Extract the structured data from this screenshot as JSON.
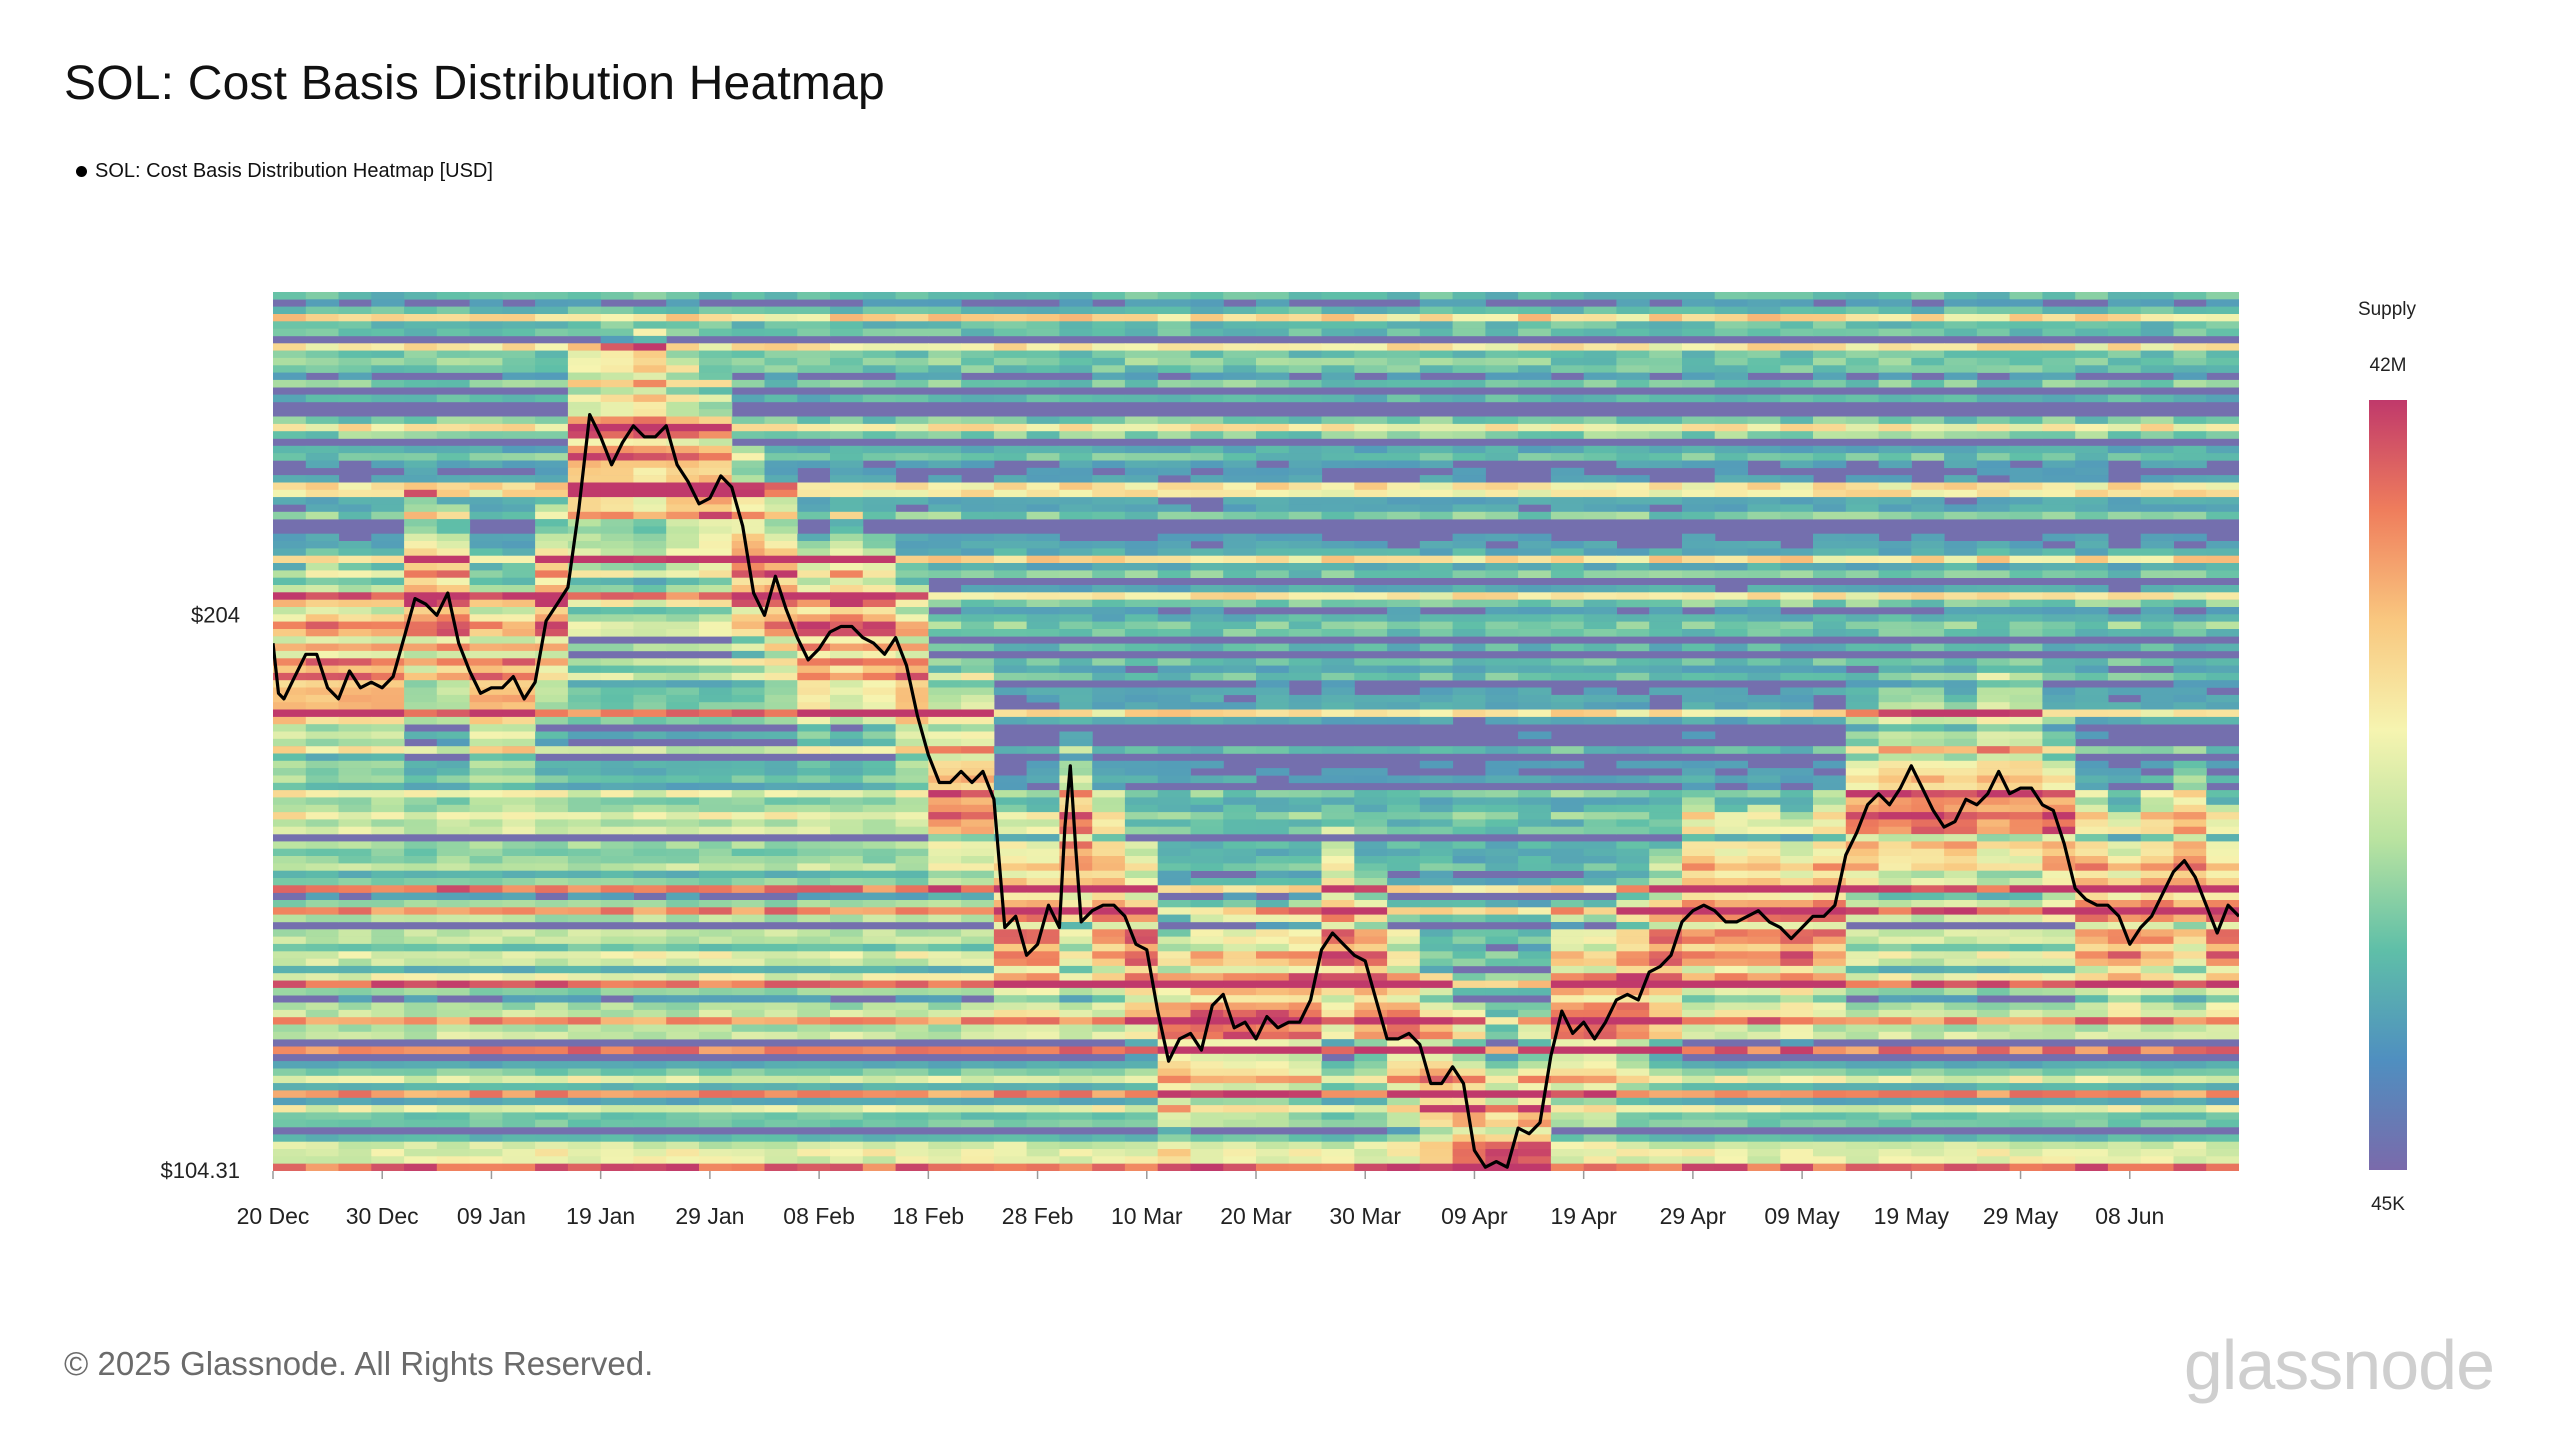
{
  "page": {
    "title": "SOL: Cost Basis Distribution Heatmap",
    "legend_label": "SOL: Cost Basis Distribution Heatmap [USD]",
    "footer": "© 2025 Glassnode. All Rights Reserved.",
    "brand": "glassnode"
  },
  "chart_data": {
    "type": "heatmap",
    "title": "SOL: Cost Basis Distribution Heatmap",
    "series": [
      {
        "name": "SOL: Cost Basis Distribution Heatmap [USD]",
        "color": "#000000"
      }
    ],
    "y_ticks": [
      {
        "value": 204,
        "label": "$204"
      },
      {
        "value": 104.31,
        "label": "$104.31"
      }
    ],
    "ylim": [
      104.31,
      262
    ],
    "x_ticks": [
      "20 Dec",
      "30 Dec",
      "09 Jan",
      "19 Jan",
      "29 Jan",
      "08 Feb",
      "18 Feb",
      "28 Feb",
      "10 Mar",
      "20 Mar",
      "30 Mar",
      "09 Apr",
      "19 Apr",
      "29 Apr",
      "09 May",
      "19 May",
      "29 May",
      "08 Jun"
    ],
    "x_range_days": [
      0,
      180
    ],
    "colorbar": {
      "title": "Supply",
      "max_label": "42M",
      "min_label": "45K",
      "colors": [
        "#7a6aab",
        "#4f8fc0",
        "#5fbfa8",
        "#b9e3a0",
        "#f6f4b0",
        "#f9c77f",
        "#ef7d5c",
        "#c0396b"
      ]
    },
    "price_line": [
      [
        0,
        199
      ],
      [
        0.5,
        190
      ],
      [
        1,
        189
      ],
      [
        2,
        193
      ],
      [
        3,
        197
      ],
      [
        4,
        197
      ],
      [
        5,
        191
      ],
      [
        6,
        189
      ],
      [
        7,
        194
      ],
      [
        8,
        191
      ],
      [
        9,
        192
      ],
      [
        10,
        191
      ],
      [
        11,
        193
      ],
      [
        12,
        200
      ],
      [
        13,
        207
      ],
      [
        14,
        206
      ],
      [
        15,
        204
      ],
      [
        16,
        208
      ],
      [
        17,
        199
      ],
      [
        18,
        194
      ],
      [
        19,
        190
      ],
      [
        20,
        191
      ],
      [
        21,
        191
      ],
      [
        22,
        193
      ],
      [
        23,
        189
      ],
      [
        24,
        192
      ],
      [
        25,
        203
      ],
      [
        26,
        206
      ],
      [
        27,
        209
      ],
      [
        28,
        223
      ],
      [
        29,
        240
      ],
      [
        30,
        236
      ],
      [
        31,
        231
      ],
      [
        32,
        235
      ],
      [
        33,
        238
      ],
      [
        34,
        236
      ],
      [
        35,
        236
      ],
      [
        36,
        238
      ],
      [
        37,
        231
      ],
      [
        38,
        228
      ],
      [
        39,
        224
      ],
      [
        40,
        225
      ],
      [
        41,
        229
      ],
      [
        42,
        227
      ],
      [
        43,
        220
      ],
      [
        44,
        208
      ],
      [
        45,
        204
      ],
      [
        46,
        211
      ],
      [
        47,
        205
      ],
      [
        48,
        200
      ],
      [
        49,
        196
      ],
      [
        50,
        198
      ],
      [
        51,
        201
      ],
      [
        52,
        202
      ],
      [
        53,
        202
      ],
      [
        54,
        200
      ],
      [
        55,
        199
      ],
      [
        56,
        197
      ],
      [
        57,
        200
      ],
      [
        58,
        195
      ],
      [
        59,
        186
      ],
      [
        60,
        179
      ],
      [
        61,
        174
      ],
      [
        62,
        174
      ],
      [
        63,
        176
      ],
      [
        64,
        174
      ],
      [
        65,
        176
      ],
      [
        66,
        171
      ],
      [
        67,
        148
      ],
      [
        68,
        150
      ],
      [
        69,
        143
      ],
      [
        70,
        145
      ],
      [
        71,
        152
      ],
      [
        72,
        148
      ],
      [
        72.5,
        166
      ],
      [
        73,
        177
      ],
      [
        73.5,
        162
      ],
      [
        74,
        149
      ],
      [
        75,
        151
      ],
      [
        76,
        152
      ],
      [
        77,
        152
      ],
      [
        78,
        150
      ],
      [
        79,
        145
      ],
      [
        80,
        144
      ],
      [
        81,
        133
      ],
      [
        82,
        124
      ],
      [
        83,
        128
      ],
      [
        84,
        129
      ],
      [
        85,
        126
      ],
      [
        86,
        134
      ],
      [
        87,
        136
      ],
      [
        88,
        130
      ],
      [
        89,
        131
      ],
      [
        90,
        128
      ],
      [
        91,
        132
      ],
      [
        92,
        130
      ],
      [
        93,
        131
      ],
      [
        94,
        131
      ],
      [
        95,
        135
      ],
      [
        96,
        144
      ],
      [
        97,
        147
      ],
      [
        98,
        145
      ],
      [
        99,
        143
      ],
      [
        100,
        142
      ],
      [
        101,
        135
      ],
      [
        102,
        128
      ],
      [
        103,
        128
      ],
      [
        104,
        129
      ],
      [
        105,
        127
      ],
      [
        106,
        120
      ],
      [
        107,
        120
      ],
      [
        108,
        123
      ],
      [
        109,
        120
      ],
      [
        110,
        108
      ],
      [
        111,
        105
      ],
      [
        112,
        106
      ],
      [
        113,
        105
      ],
      [
        114,
        112
      ],
      [
        115,
        111
      ],
      [
        116,
        113
      ],
      [
        117,
        125
      ],
      [
        118,
        133
      ],
      [
        119,
        129
      ],
      [
        120,
        131
      ],
      [
        121,
        128
      ],
      [
        122,
        131
      ],
      [
        123,
        135
      ],
      [
        124,
        136
      ],
      [
        125,
        135
      ],
      [
        126,
        140
      ],
      [
        127,
        141
      ],
      [
        128,
        143
      ],
      [
        129,
        149
      ],
      [
        130,
        151
      ],
      [
        131,
        152
      ],
      [
        132,
        151
      ],
      [
        133,
        149
      ],
      [
        134,
        149
      ],
      [
        135,
        150
      ],
      [
        136,
        151
      ],
      [
        137,
        149
      ],
      [
        138,
        148
      ],
      [
        139,
        146
      ],
      [
        140,
        148
      ],
      [
        141,
        150
      ],
      [
        142,
        150
      ],
      [
        143,
        152
      ],
      [
        144,
        161
      ],
      [
        145,
        165
      ],
      [
        146,
        170
      ],
      [
        147,
        172
      ],
      [
        148,
        170
      ],
      [
        149,
        173
      ],
      [
        150,
        177
      ],
      [
        151,
        173
      ],
      [
        152,
        169
      ],
      [
        153,
        166
      ],
      [
        154,
        167
      ],
      [
        155,
        171
      ],
      [
        156,
        170
      ],
      [
        157,
        172
      ],
      [
        158,
        176
      ],
      [
        159,
        172
      ],
      [
        160,
        173
      ],
      [
        161,
        173
      ],
      [
        162,
        170
      ],
      [
        163,
        169
      ],
      [
        164,
        163
      ],
      [
        165,
        155
      ],
      [
        166,
        153
      ],
      [
        167,
        152
      ],
      [
        168,
        152
      ],
      [
        169,
        150
      ],
      [
        170,
        145
      ],
      [
        171,
        148
      ],
      [
        172,
        150
      ],
      [
        173,
        154
      ],
      [
        174,
        158
      ],
      [
        175,
        160
      ],
      [
        176,
        157
      ],
      [
        177,
        152
      ],
      [
        178,
        147
      ],
      [
        179,
        152
      ],
      [
        180,
        150
      ]
    ]
  }
}
